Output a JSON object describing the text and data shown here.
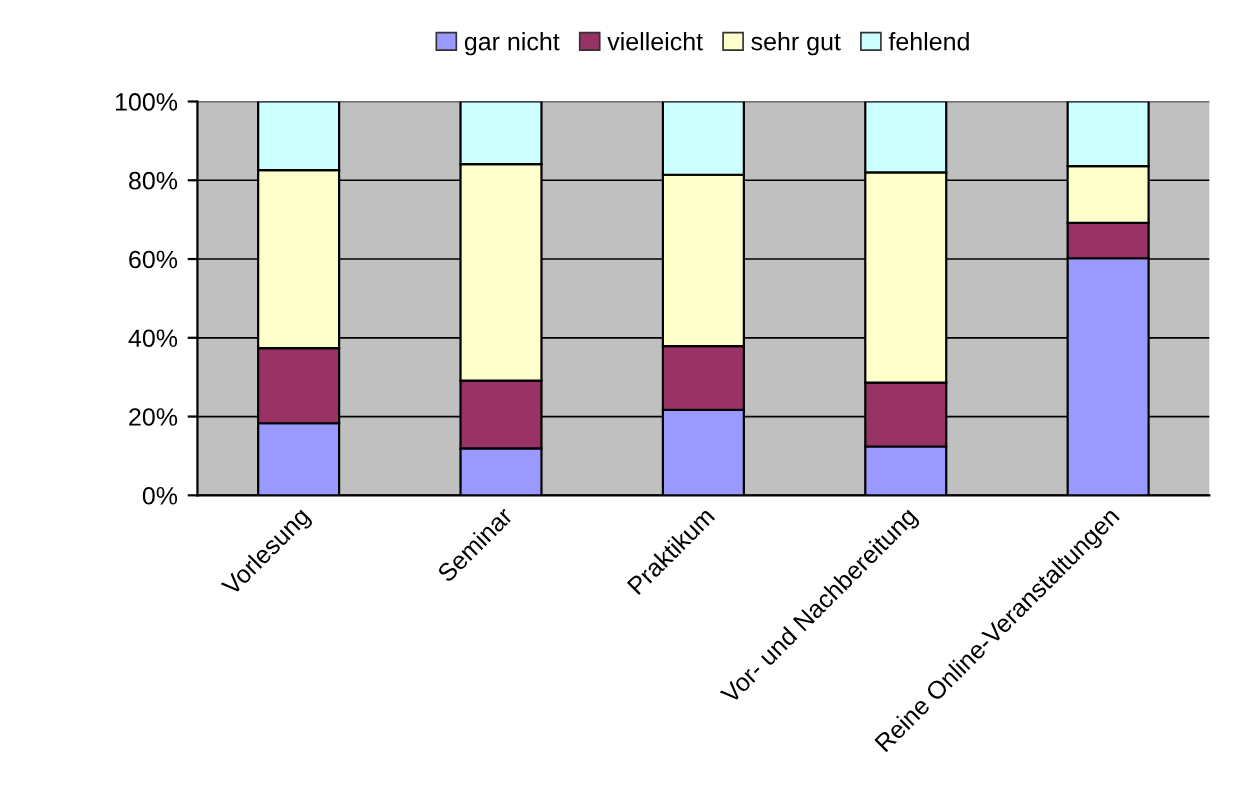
{
  "chart_data": {
    "type": "bar",
    "stacked": true,
    "categories": [
      "Vorlesung",
      "Seminar",
      "Praktikum",
      "Vor- und Nachbereitung",
      "Reine Online-Veranstaltungen"
    ],
    "series": [
      {
        "name": "gar nicht",
        "color": "#9999ff",
        "values": [
          18.3,
          11.9,
          21.7,
          12.4,
          60.2
        ]
      },
      {
        "name": "vielleicht",
        "color": "#993366",
        "values": [
          19.1,
          17.2,
          16.2,
          16.2,
          9.0
        ]
      },
      {
        "name": "sehr gut",
        "color": "#ffffcc",
        "values": [
          45.2,
          55.0,
          43.5,
          53.4,
          14.4
        ]
      },
      {
        "name": "fehlend",
        "color": "#ccffff",
        "values": [
          17.4,
          15.9,
          18.6,
          18.0,
          16.4
        ]
      }
    ],
    "ylim": [
      0,
      100
    ],
    "yticks": [
      {
        "value": 0,
        "label": "0%"
      },
      {
        "value": 20,
        "label": "20%"
      },
      {
        "value": 40,
        "label": "40%"
      },
      {
        "value": 60,
        "label": "60%"
      },
      {
        "value": 80,
        "label": "80%"
      },
      {
        "value": 100,
        "label": "100%"
      }
    ],
    "grid": "y",
    "legend": "top"
  }
}
